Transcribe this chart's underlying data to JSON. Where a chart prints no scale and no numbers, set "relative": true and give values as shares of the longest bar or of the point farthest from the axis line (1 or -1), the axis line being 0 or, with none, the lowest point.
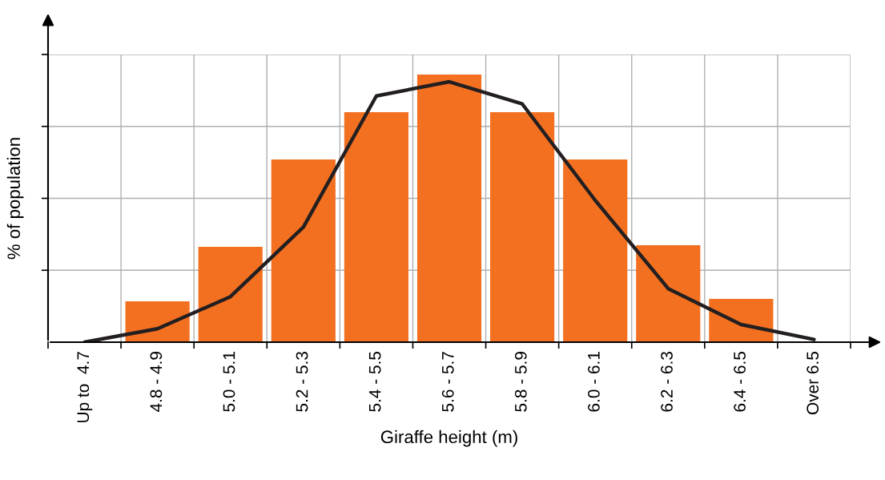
{
  "chart_data": {
    "type": "bar",
    "relative": true,
    "xlabel": "Giraffe height (m)",
    "ylabel": "% of population",
    "grid": true,
    "legend": false,
    "categories": [
      "Up to  4.7",
      "4.8 - 4.9",
      "5.0 - 5.1",
      "5.2 - 5.3",
      "5.4 - 5.5",
      "5.6 - 5.7",
      "5.8 - 5.9",
      "6.0 - 6.1",
      "6.2 - 6.3",
      "6.4 - 6.5",
      "Over 6.5"
    ],
    "series": [
      {
        "color": "#f37021",
        "values": [
          0,
          0.153,
          0.356,
          0.683,
          0.859,
          1,
          0.859,
          0.683,
          0.362,
          0.162,
          0
        ]
      },
      {
        "type": "line",
        "color": "#231f20",
        "line_style": "solid",
        "marker": "none",
        "values": [
          0,
          0.05,
          0.17,
          0.43,
          0.92,
          0.973,
          0.89,
          0.53,
          0.2,
          0.066,
          0.01
        ]
      }
    ]
  }
}
